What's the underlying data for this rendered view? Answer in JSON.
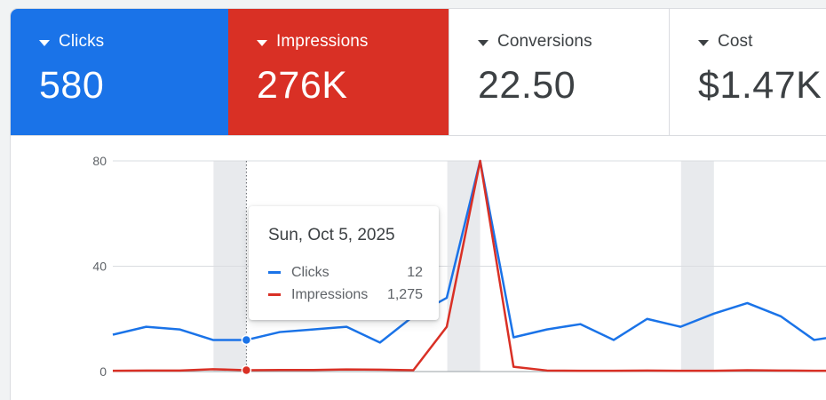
{
  "metrics": [
    {
      "label": "Clicks",
      "value": "580",
      "color": "#1a73e8"
    },
    {
      "label": "Impressions",
      "value": "276K",
      "color": "#d93025"
    },
    {
      "label": "Conversions",
      "value": "22.50"
    },
    {
      "label": "Cost",
      "value": "$1.47K"
    }
  ],
  "chart_data": {
    "type": "line",
    "ylim": [
      0,
      80
    ],
    "yticks": [
      "80",
      "40",
      "0"
    ],
    "grid": true,
    "series": [
      {
        "name": "Clicks",
        "color": "#1a73e8",
        "values": [
          14,
          17,
          16,
          12,
          12,
          15,
          16,
          17,
          11,
          21,
          28,
          80,
          13,
          16,
          18,
          12,
          20,
          17,
          22,
          26,
          21,
          12,
          14
        ]
      },
      {
        "name": "Impressions",
        "color": "#d93025",
        "values": [
          0.3,
          0.4,
          0.4,
          0.9,
          0.5,
          0.6,
          0.6,
          0.8,
          0.7,
          0.5,
          17,
          80,
          1.8,
          0.4,
          0.3,
          0.3,
          0.4,
          0.3,
          0.3,
          0.5,
          0.4,
          0.3,
          0.3
        ]
      }
    ],
    "shaded_days": [
      4,
      11,
      18
    ],
    "hover_index": 4
  },
  "tooltip": {
    "date": "Sun, Oct 5, 2025",
    "rows": [
      {
        "label": "Clicks",
        "value": "12",
        "color": "#1a73e8"
      },
      {
        "label": "Impressions",
        "value": "1,275",
        "color": "#d93025"
      }
    ]
  }
}
